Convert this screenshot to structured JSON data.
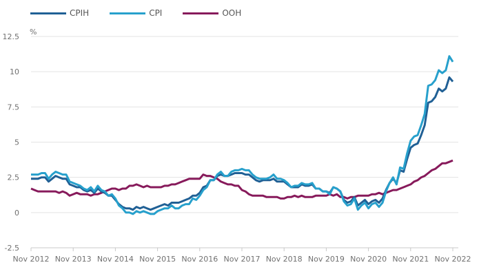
{
  "chart_data": {
    "type": "line",
    "title": "",
    "xlabel": "",
    "ylabel": "%",
    "ylim": [
      -2.5,
      12.5
    ],
    "yticks": [
      "12.5",
      "10",
      "7.5",
      "5",
      "2.5",
      "0",
      "-2.5"
    ],
    "ytick_values": [
      12.5,
      10,
      7.5,
      5,
      2.5,
      0,
      -2.5
    ],
    "xticks": [
      "Nov 2012",
      "Nov 2013",
      "Nov 2014",
      "Nov 2015",
      "Nov 2016",
      "Nov 2017",
      "Nov 2018",
      "Nov 2019",
      "Nov 2020",
      "Nov 2021",
      "Nov 2022"
    ],
    "x_start": "Nov 2012",
    "x_end": "Nov 2022",
    "frequency": "monthly",
    "grid": true,
    "legend_position": "top-left",
    "series": [
      {
        "name": "CPIH",
        "color": "#206095",
        "values": [
          2.4,
          2.4,
          2.4,
          2.5,
          2.5,
          2.2,
          2.4,
          2.6,
          2.5,
          2.4,
          2.4,
          2.0,
          1.9,
          1.8,
          1.8,
          1.6,
          1.5,
          1.6,
          1.4,
          1.7,
          1.5,
          1.4,
          1.2,
          1.2,
          0.9,
          0.6,
          0.4,
          0.3,
          0.3,
          0.2,
          0.4,
          0.3,
          0.4,
          0.3,
          0.2,
          0.3,
          0.4,
          0.5,
          0.6,
          0.5,
          0.7,
          0.7,
          0.7,
          0.8,
          0.9,
          1.0,
          1.2,
          1.2,
          1.4,
          1.8,
          1.9,
          2.3,
          2.3,
          2.6,
          2.7,
          2.6,
          2.6,
          2.7,
          2.8,
          2.8,
          2.8,
          2.7,
          2.7,
          2.5,
          2.3,
          2.2,
          2.3,
          2.3,
          2.3,
          2.4,
          2.2,
          2.2,
          2.2,
          2.0,
          1.8,
          1.8,
          1.8,
          2.0,
          1.9,
          1.9,
          2.0,
          1.7,
          1.7,
          1.5,
          1.5,
          1.4,
          1.8,
          1.7,
          1.5,
          0.9,
          0.7,
          0.8,
          1.1,
          0.5,
          0.7,
          0.9,
          0.6,
          0.8,
          0.9,
          0.7,
          1.0,
          1.6,
          2.1,
          2.4,
          2.1,
          3.0,
          2.9,
          3.8,
          4.6,
          4.8,
          4.9,
          5.5,
          6.2,
          7.8,
          7.9,
          8.2,
          8.8,
          8.6,
          8.8,
          9.6,
          9.3
        ]
      },
      {
        "name": "CPI",
        "color": "#27a0cc",
        "values": [
          2.7,
          2.7,
          2.7,
          2.8,
          2.8,
          2.4,
          2.7,
          2.9,
          2.8,
          2.7,
          2.7,
          2.2,
          2.1,
          2.0,
          1.9,
          1.7,
          1.6,
          1.8,
          1.5,
          1.9,
          1.6,
          1.5,
          1.2,
          1.3,
          1.0,
          0.5,
          0.3,
          0.0,
          0.0,
          -0.1,
          0.1,
          0.0,
          0.1,
          0.0,
          -0.1,
          -0.1,
          0.1,
          0.2,
          0.3,
          0.3,
          0.5,
          0.3,
          0.3,
          0.5,
          0.6,
          0.6,
          1.0,
          0.9,
          1.2,
          1.6,
          1.8,
          2.3,
          2.3,
          2.7,
          2.9,
          2.6,
          2.6,
          2.9,
          3.0,
          3.0,
          3.1,
          3.0,
          3.0,
          2.7,
          2.5,
          2.4,
          2.4,
          2.4,
          2.5,
          2.7,
          2.4,
          2.4,
          2.3,
          2.1,
          1.8,
          1.9,
          1.9,
          2.1,
          2.0,
          2.0,
          2.1,
          1.7,
          1.7,
          1.5,
          1.5,
          1.3,
          1.8,
          1.7,
          1.5,
          0.8,
          0.5,
          0.6,
          1.0,
          0.2,
          0.5,
          0.7,
          0.3,
          0.6,
          0.7,
          0.4,
          0.7,
          1.5,
          2.1,
          2.5,
          2.0,
          3.2,
          3.1,
          4.2,
          5.1,
          5.4,
          5.5,
          6.2,
          7.0,
          9.0,
          9.1,
          9.4,
          10.1,
          9.9,
          10.1,
          11.1,
          10.7
        ]
      },
      {
        "name": "OOH",
        "color": "#871a5b",
        "values": [
          1.7,
          1.6,
          1.5,
          1.5,
          1.5,
          1.5,
          1.5,
          1.5,
          1.4,
          1.5,
          1.4,
          1.2,
          1.3,
          1.4,
          1.3,
          1.3,
          1.3,
          1.2,
          1.3,
          1.3,
          1.4,
          1.5,
          1.6,
          1.7,
          1.7,
          1.6,
          1.7,
          1.7,
          1.9,
          1.9,
          2.0,
          1.9,
          1.8,
          1.9,
          1.8,
          1.8,
          1.8,
          1.8,
          1.9,
          1.9,
          2.0,
          2.0,
          2.1,
          2.2,
          2.3,
          2.4,
          2.4,
          2.4,
          2.4,
          2.7,
          2.6,
          2.6,
          2.5,
          2.4,
          2.2,
          2.1,
          2.0,
          2.0,
          1.9,
          1.9,
          1.6,
          1.5,
          1.3,
          1.2,
          1.2,
          1.2,
          1.2,
          1.1,
          1.1,
          1.1,
          1.1,
          1.0,
          1.0,
          1.1,
          1.1,
          1.2,
          1.1,
          1.2,
          1.1,
          1.1,
          1.1,
          1.2,
          1.2,
          1.2,
          1.2,
          1.3,
          1.2,
          1.3,
          1.1,
          1.1,
          1.0,
          1.1,
          1.1,
          1.2,
          1.2,
          1.2,
          1.2,
          1.3,
          1.3,
          1.4,
          1.3,
          1.4,
          1.5,
          1.6,
          1.6,
          1.7,
          1.8,
          1.9,
          2.0,
          2.2,
          2.3,
          2.5,
          2.6,
          2.8,
          3.0,
          3.1,
          3.3,
          3.5,
          3.5,
          3.6,
          3.7
        ]
      }
    ]
  }
}
